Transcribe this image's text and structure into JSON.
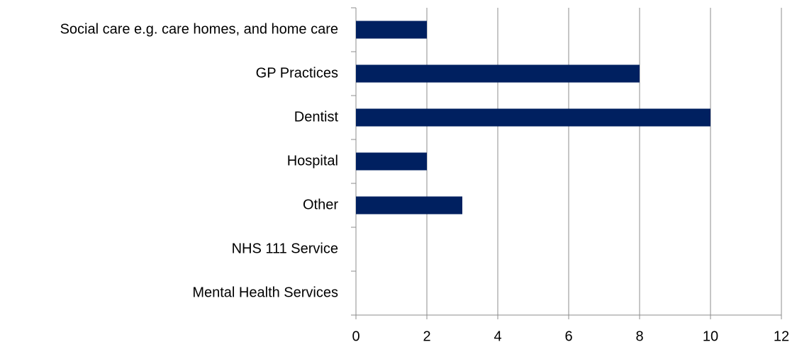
{
  "chart_data": {
    "type": "bar",
    "orientation": "horizontal",
    "categories": [
      "Social care e.g. care homes, and home care",
      "GP Practices",
      "Dentist",
      "Hospital",
      "Other",
      "NHS 111 Service",
      "Mental Health Services"
    ],
    "values": [
      2,
      8,
      10,
      2,
      3,
      0,
      0
    ],
    "color": "#002060",
    "xlim": [
      0,
      12
    ],
    "xticks": [
      0,
      2,
      4,
      6,
      8,
      10,
      12
    ],
    "grid": true
  }
}
